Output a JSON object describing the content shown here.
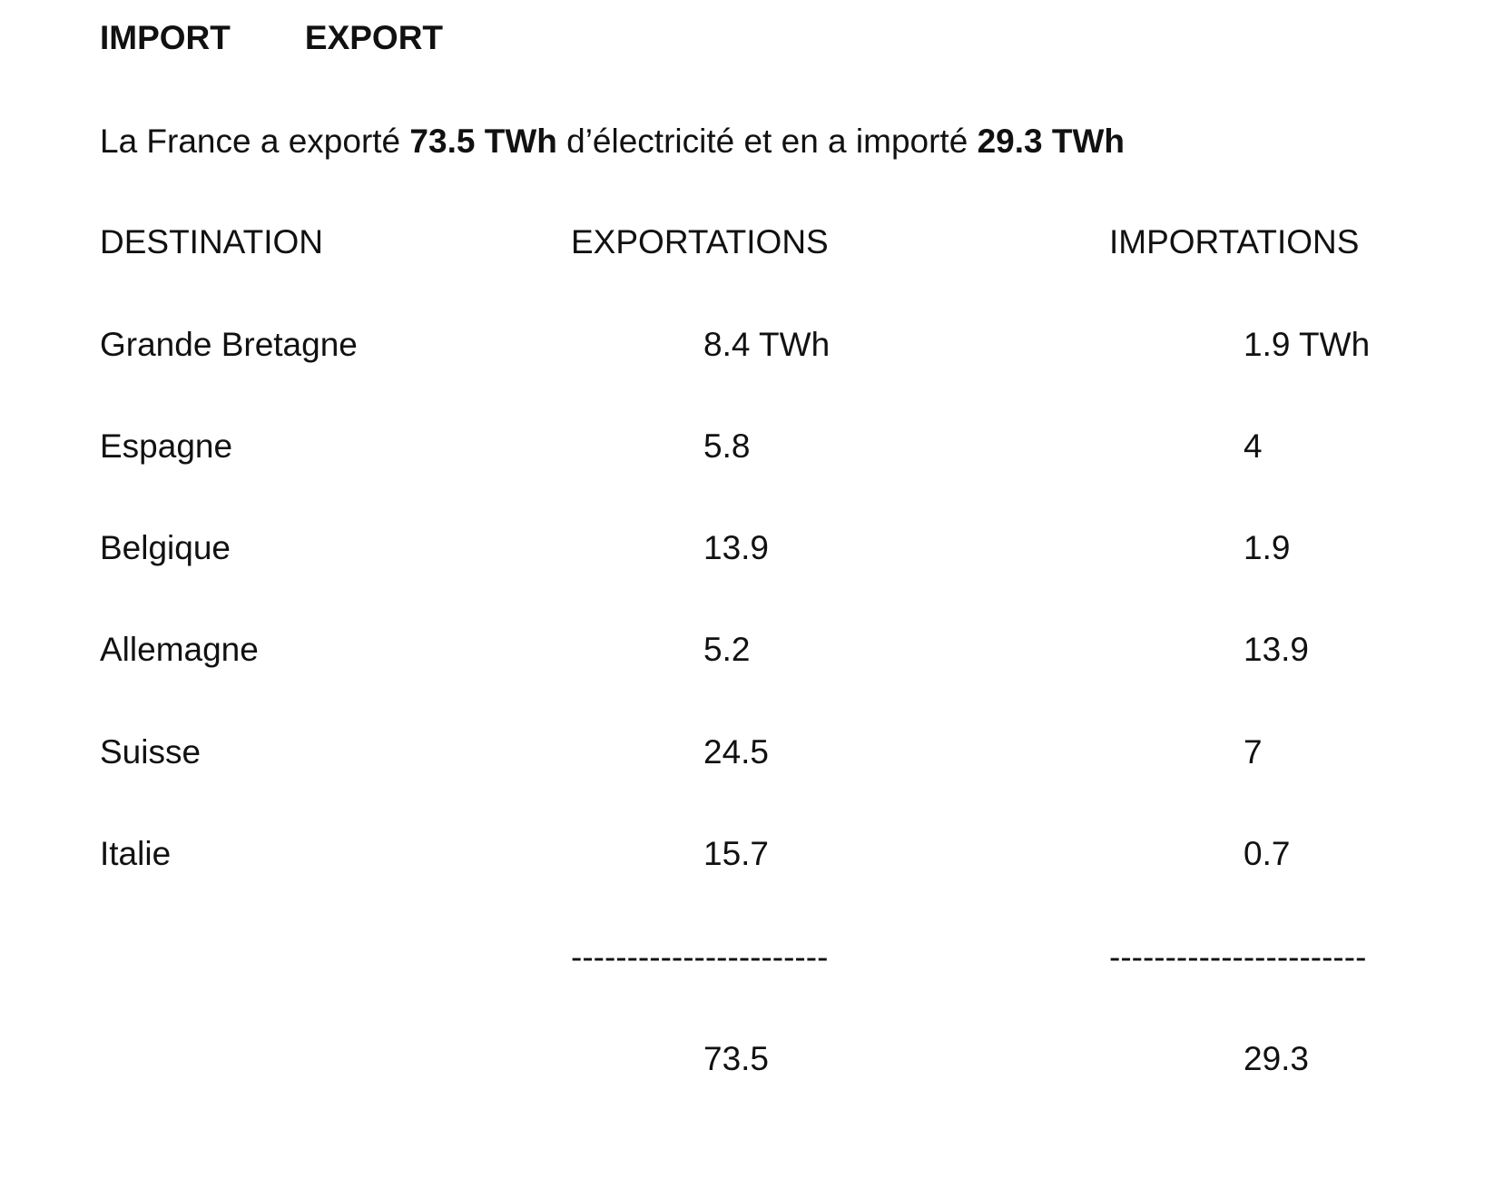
{
  "header": {
    "title_left": "IMPORT",
    "title_right": "EXPORT"
  },
  "summary": [
    "La France a exporté ",
    "73.5 TWh",
    " d’électricité et en a importé ",
    "29.3 TWh"
  ],
  "table": {
    "columns": [
      "DESTINATION",
      "EXPORTATIONS",
      "IMPORTATIONS"
    ],
    "rows": [
      [
        "Grande Bretagne",
        "8.4 TWh",
        "1.9 TWh"
      ],
      [
        "Espagne",
        "5.8",
        "4"
      ],
      [
        "Belgique",
        "13.9",
        "1.9"
      ],
      [
        "Allemagne",
        "5.2",
        "13.9"
      ],
      [
        "Suisse",
        "24.5",
        "7"
      ],
      [
        "Italie",
        "15.7",
        "0.7"
      ]
    ],
    "separators": [
      "-----------------------",
      "-----------------------"
    ],
    "totals": [
      "73.5",
      "29.3"
    ]
  }
}
